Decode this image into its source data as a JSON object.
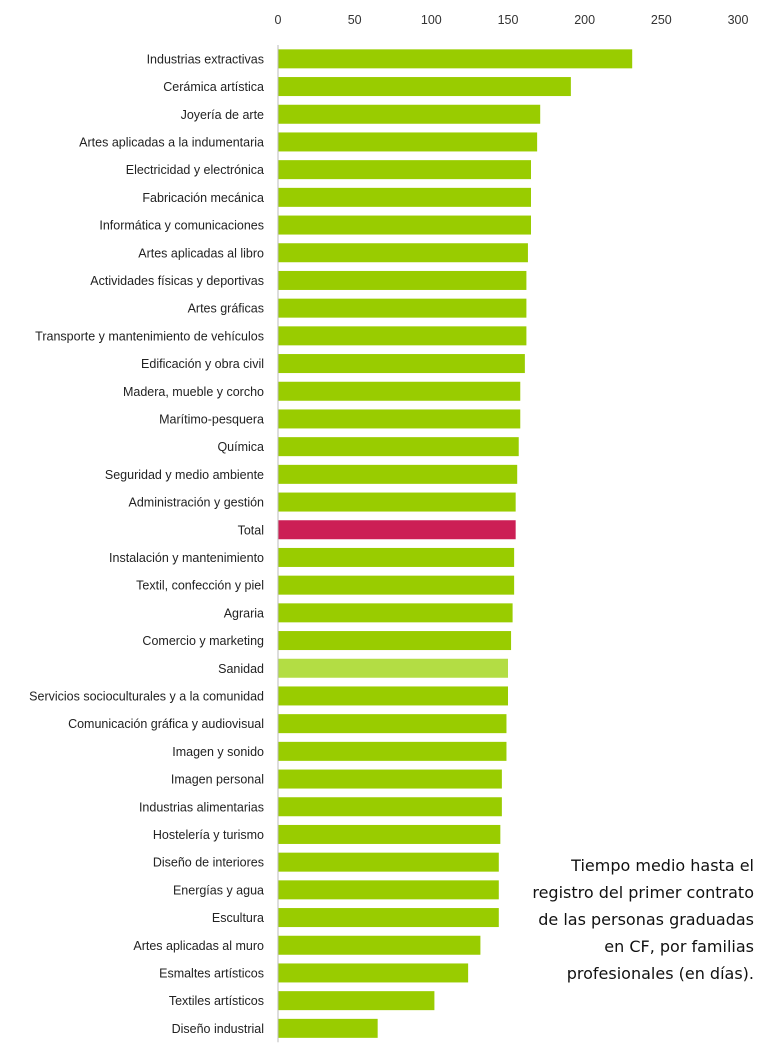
{
  "caption": "Tiempo medio hasta el registro del primer contrato de las personas graduadas en CF, por familias profesionales (en días).",
  "colors": {
    "default": "#99cc00",
    "highlight": "#cc1f55",
    "light": "#b3dd44"
  },
  "chart_data": {
    "type": "bar",
    "orientation": "horizontal",
    "xlim": [
      0,
      300
    ],
    "xticks": [
      0,
      50,
      100,
      150,
      200,
      250,
      300
    ],
    "x_axis_position": "top",
    "grid": false,
    "legend": "none",
    "categories": [
      "Industrias extractivas",
      "Cerámica artística",
      "Joyería de arte",
      "Artes aplicadas a la indumentaria",
      "Electricidad y electrónica",
      "Fabricación mecánica",
      "Informática y comunicaciones",
      "Artes aplicadas al libro",
      "Actividades físicas y deportivas",
      "Artes gráficas",
      "Transporte y mantenimiento de vehículos",
      "Edificación y obra civil",
      "Madera, mueble y corcho",
      "Marítimo-pesquera",
      "Química",
      "Seguridad y medio ambiente",
      "Administración y gestión",
      "Total",
      "Instalación y mantenimiento",
      "Textil, confección y piel",
      "Agraria",
      "Comercio y marketing",
      "Sanidad",
      "Servicios socioculturales y a la comunidad",
      "Comunicación gráfica y audiovisual",
      "Imagen y sonido",
      "Imagen personal",
      "Industrias alimentarias",
      "Hostelería y turismo",
      "Diseño de interiores",
      "Energías y agua",
      "Escultura",
      "Artes aplicadas al muro",
      "Esmaltes artísticos",
      "Textiles artísticos",
      "Diseño industrial"
    ],
    "values": [
      231,
      191,
      171,
      169,
      165,
      165,
      165,
      163,
      162,
      162,
      162,
      161,
      158,
      158,
      157,
      156,
      155,
      155,
      154,
      154,
      153,
      152,
      150,
      150,
      149,
      149,
      146,
      146,
      145,
      144,
      144,
      144,
      132,
      124,
      102,
      65
    ],
    "bar_color_keys": [
      "default",
      "default",
      "default",
      "default",
      "default",
      "default",
      "default",
      "default",
      "default",
      "default",
      "default",
      "default",
      "default",
      "default",
      "default",
      "default",
      "default",
      "highlight",
      "default",
      "default",
      "default",
      "default",
      "light",
      "default",
      "default",
      "default",
      "default",
      "default",
      "default",
      "default",
      "default",
      "default",
      "default",
      "default",
      "default",
      "default"
    ]
  }
}
